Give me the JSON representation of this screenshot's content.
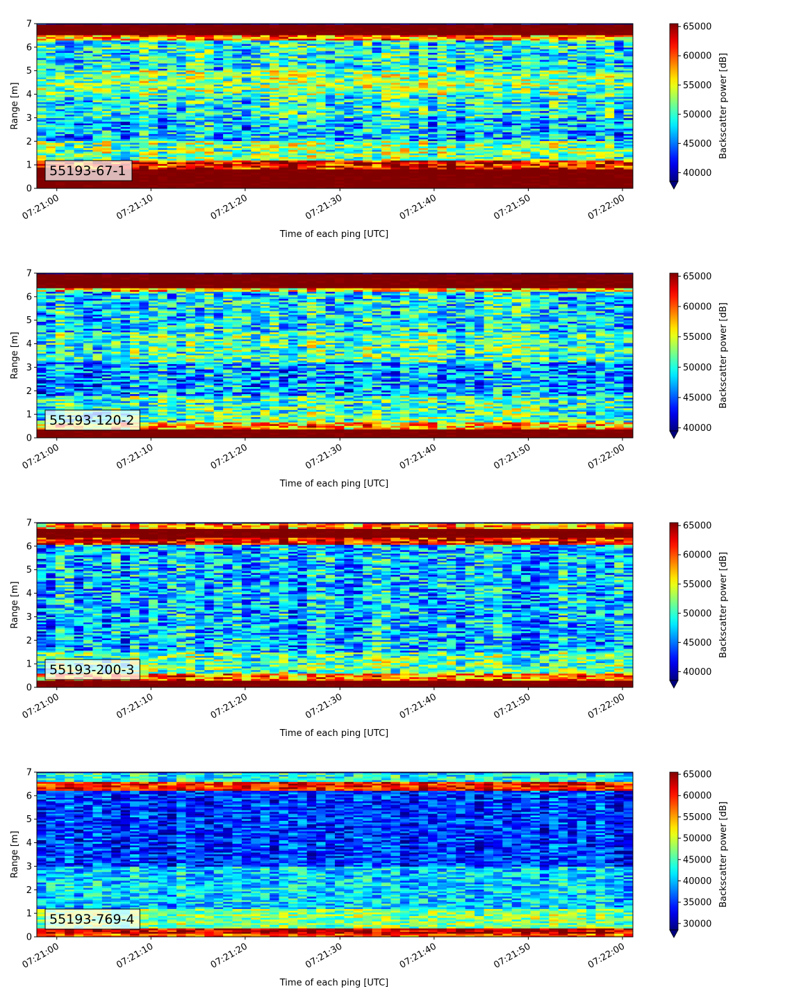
{
  "chart_data": [
    {
      "type": "heatmap",
      "label": "55193-67-1",
      "xlabel": "Time of each ping [UTC]",
      "ylabel": "Range [m]",
      "ylim": [
        0,
        7
      ],
      "yticks": [
        0,
        1,
        2,
        3,
        4,
        5,
        6,
        7
      ],
      "xticks": [
        "07:21:00",
        "07:21:10",
        "07:21:20",
        "07:21:30",
        "07:21:40",
        "07:21:50",
        "07:22:00"
      ],
      "colorbar": {
        "label": "Backscatter power [dB]",
        "min": 38500,
        "max": 65500,
        "ticks": [
          40000,
          45000,
          50000,
          55000,
          60000,
          65000
        ],
        "extend": "min"
      },
      "bands": [
        {
          "range": [
            0.0,
            0.25
          ],
          "value": 65000
        },
        {
          "range": [
            0.25,
            0.85
          ],
          "value": 65000
        },
        {
          "range": [
            0.85,
            1.2
          ],
          "value": 62000
        },
        {
          "range": [
            1.2,
            2.0
          ],
          "value": 52000
        },
        {
          "range": [
            2.0,
            3.0
          ],
          "value": 47000
        },
        {
          "range": [
            3.0,
            4.0
          ],
          "value": 49000
        },
        {
          "range": [
            4.0,
            5.0
          ],
          "value": 52000
        },
        {
          "range": [
            5.0,
            6.3
          ],
          "value": 49000
        },
        {
          "range": [
            6.3,
            6.5
          ],
          "value": 58000
        },
        {
          "range": [
            6.5,
            7.0
          ],
          "value": 65000
        }
      ]
    },
    {
      "type": "heatmap",
      "label": "55193-120-2",
      "xlabel": "Time of each ping [UTC]",
      "ylabel": "Range [m]",
      "ylim": [
        0,
        7
      ],
      "yticks": [
        0,
        1,
        2,
        3,
        4,
        5,
        6,
        7
      ],
      "xticks": [
        "07:21:00",
        "07:21:10",
        "07:21:20",
        "07:21:30",
        "07:21:40",
        "07:21:50",
        "07:22:00"
      ],
      "colorbar": {
        "label": "Backscatter power [dB]",
        "min": 39500,
        "max": 65500,
        "ticks": [
          40000,
          45000,
          50000,
          55000,
          60000,
          65000
        ],
        "extend": "min"
      },
      "bands": [
        {
          "range": [
            0.0,
            0.35
          ],
          "value": 65000
        },
        {
          "range": [
            0.35,
            0.65
          ],
          "value": 58000
        },
        {
          "range": [
            0.65,
            1.8
          ],
          "value": 51000
        },
        {
          "range": [
            1.8,
            3.2
          ],
          "value": 47000
        },
        {
          "range": [
            3.2,
            4.5
          ],
          "value": 51000
        },
        {
          "range": [
            4.5,
            6.2
          ],
          "value": 49000
        },
        {
          "range": [
            6.2,
            6.4
          ],
          "value": 57000
        },
        {
          "range": [
            6.4,
            7.0
          ],
          "value": 65000
        }
      ]
    },
    {
      "type": "heatmap",
      "label": "55193-200-3",
      "xlabel": "Time of each ping [UTC]",
      "ylabel": "Range [m]",
      "ylim": [
        0,
        7
      ],
      "yticks": [
        0,
        1,
        2,
        3,
        4,
        5,
        6,
        7
      ],
      "xticks": [
        "07:21:00",
        "07:21:10",
        "07:21:20",
        "07:21:30",
        "07:21:40",
        "07:21:50",
        "07:22:00"
      ],
      "colorbar": {
        "label": "Backscatter power [dB]",
        "min": 38500,
        "max": 65500,
        "ticks": [
          40000,
          45000,
          50000,
          55000,
          60000,
          65000
        ],
        "extend": "min"
      },
      "bands": [
        {
          "range": [
            0.0,
            0.3
          ],
          "value": 65000
        },
        {
          "range": [
            0.3,
            0.6
          ],
          "value": 59000
        },
        {
          "range": [
            0.6,
            1.5
          ],
          "value": 51000
        },
        {
          "range": [
            1.5,
            6.1
          ],
          "value": 47000
        },
        {
          "range": [
            6.1,
            6.4
          ],
          "value": 62000
        },
        {
          "range": [
            6.4,
            6.75
          ],
          "value": 65000
        },
        {
          "range": [
            6.75,
            7.0
          ],
          "value": 58000
        }
      ]
    },
    {
      "type": "heatmap",
      "label": "55193-769-4",
      "xlabel": "Time of each ping [UTC]",
      "ylabel": "Range [m]",
      "ylim": [
        0,
        7
      ],
      "yticks": [
        0,
        1,
        2,
        3,
        4,
        5,
        6,
        7
      ],
      "xticks": [
        "07:21:00",
        "07:21:10",
        "07:21:20",
        "07:21:30",
        "07:21:40",
        "07:21:50",
        "07:22:00"
      ],
      "colorbar": {
        "label": "Backscatter power [dB]",
        "min": 28500,
        "max": 65500,
        "ticks": [
          30000,
          35000,
          40000,
          45000,
          50000,
          55000,
          60000,
          65000
        ],
        "extend": "min"
      },
      "bands": [
        {
          "range": [
            0.0,
            0.15
          ],
          "value": 58000
        },
        {
          "range": [
            0.15,
            0.35
          ],
          "value": 63000
        },
        {
          "range": [
            0.35,
            1.2
          ],
          "value": 47000
        },
        {
          "range": [
            1.2,
            3.0
          ],
          "value": 41000
        },
        {
          "range": [
            3.0,
            6.2
          ],
          "value": 35000
        },
        {
          "range": [
            6.2,
            6.6
          ],
          "value": 60000
        },
        {
          "range": [
            6.6,
            7.0
          ],
          "value": 43000
        }
      ]
    }
  ]
}
